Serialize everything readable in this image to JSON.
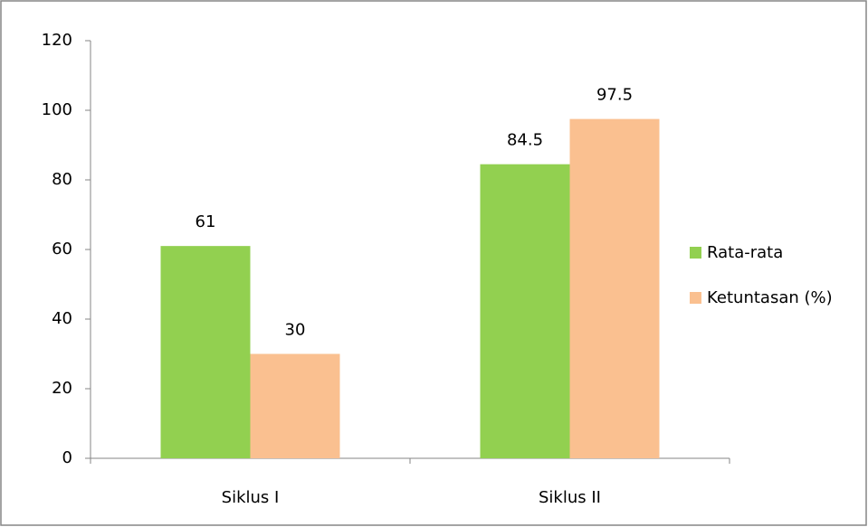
{
  "chart_data": {
    "type": "bar",
    "categories": [
      "Siklus I",
      "Siklus II"
    ],
    "series": [
      {
        "name": "Rata-rata",
        "color": "#92d050",
        "values": [
          61,
          84.5
        ]
      },
      {
        "name": "Ketuntasan (%)",
        "color": "#fac090",
        "values": [
          30,
          97.5
        ]
      }
    ],
    "ylim": [
      0,
      120
    ],
    "yticks": [
      0,
      20,
      40,
      60,
      80,
      100,
      120
    ],
    "grid": false,
    "legend": "right",
    "data_labels": true
  }
}
